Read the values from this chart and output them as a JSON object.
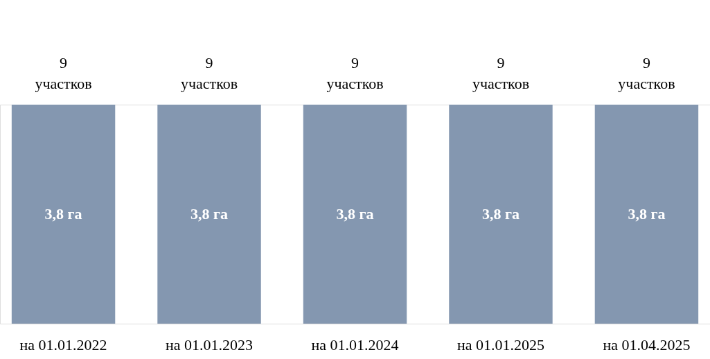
{
  "chart_data": {
    "type": "bar",
    "categories": [
      "на 01.01.2022",
      "на 01.01.2023",
      "на 01.01.2024",
      "на 01.01.2025",
      "на 01.04.2025"
    ],
    "values": [
      3.8,
      3.8,
      3.8,
      3.8,
      3.8
    ],
    "value_labels": [
      "3,8 га",
      "3,8 га",
      "3,8 га",
      "3,8 га",
      "3,8 га"
    ],
    "color": "#8497b0",
    "annotations": [
      {
        "text": "9\nучастков",
        "x": "на 01.01.2022",
        "y": 3.8
      },
      {
        "text": "9\nучастков",
        "x": "на 01.01.2023",
        "y": 3.8
      },
      {
        "text": "9\nучастков",
        "x": "на 01.01.2024",
        "y": 3.8
      },
      {
        "text": "9\nучастков",
        "x": "на 01.01.2025",
        "y": 3.8
      },
      {
        "text": "9\nучастков",
        "x": "на 01.04.2025",
        "y": 3.8
      }
    ]
  }
}
